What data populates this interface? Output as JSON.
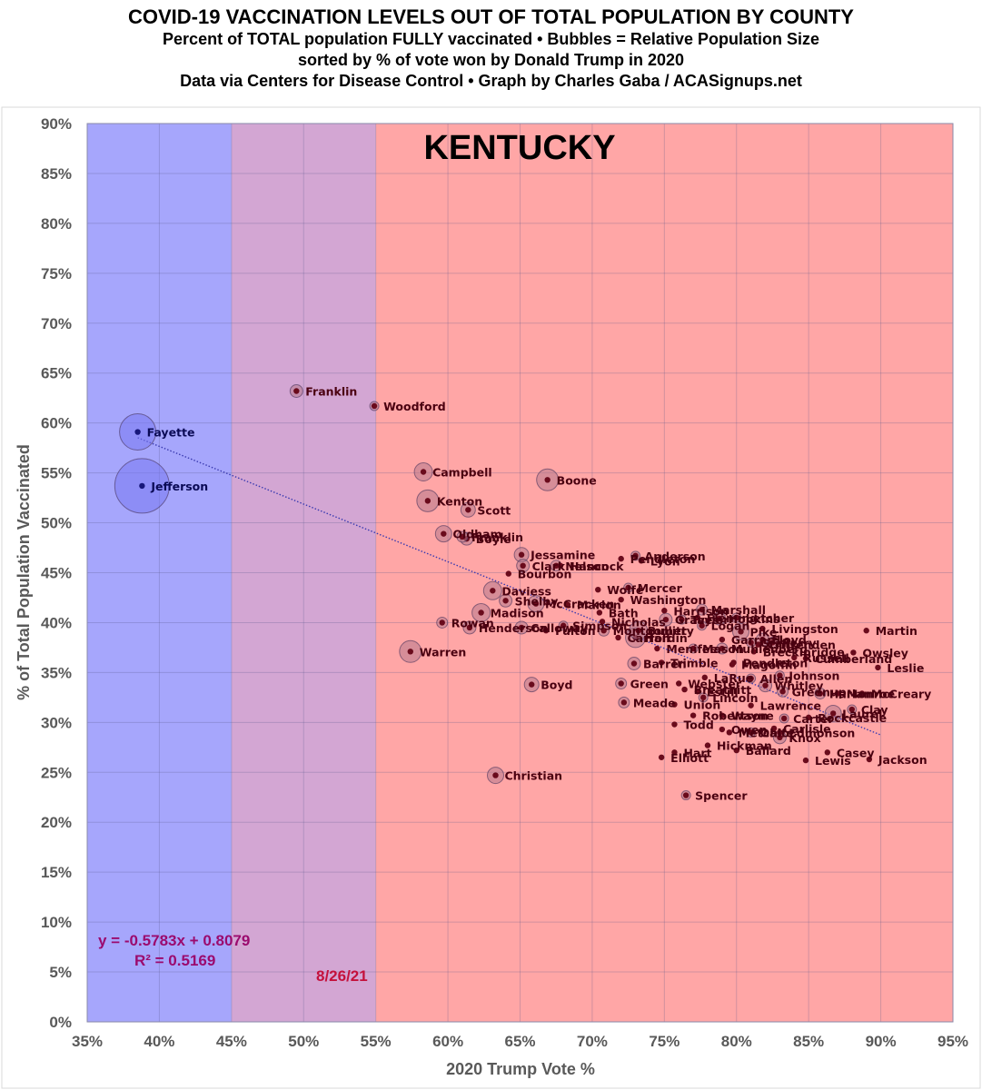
{
  "header": {
    "title": "COVID-19 VACCINATION LEVELS OUT OF TOTAL POPULATION BY COUNTY",
    "subtitle1": "Percent of TOTAL population FULLY vaccinated • Bubbles = Relative Population Size",
    "subtitle2": "sorted by % of vote won by Donald Trump in 2020",
    "subtitle3": "Data via Centers for Disease Control • Graph by Charles Gaba / ACASignups.net"
  },
  "chart_data": {
    "type": "scatter",
    "title": "KENTUCKY",
    "xlabel": "2020 Trump Vote %",
    "ylabel": "% of Total Population Vaccinated",
    "xlim": [
      0.35,
      0.95
    ],
    "ylim": [
      0.0,
      0.9
    ],
    "x_ticks": [
      "35%",
      "40%",
      "45%",
      "50%",
      "55%",
      "60%",
      "65%",
      "70%",
      "75%",
      "80%",
      "85%",
      "90%",
      "95%"
    ],
    "y_ticks": [
      "0%",
      "5%",
      "10%",
      "15%",
      "20%",
      "25%",
      "30%",
      "35%",
      "40%",
      "45%",
      "50%",
      "55%",
      "60%",
      "65%",
      "70%",
      "75%",
      "80%",
      "85%",
      "90%"
    ],
    "grid": true,
    "bands": [
      {
        "from": 0.35,
        "to": 0.45,
        "color": "#a6a6fc"
      },
      {
        "from": 0.45,
        "to": 0.55,
        "color": "#d3a6d3"
      },
      {
        "from": 0.55,
        "to": 0.95,
        "color": "#ffa6a6"
      }
    ],
    "trendline": {
      "slope": -0.5783,
      "intercept": 0.8079,
      "x_from": 0.385,
      "x_to": 0.9
    },
    "equation": "y = -0.5783x + 0.8079",
    "r_squared": "R² = 0.5169",
    "date": "8/26/21",
    "colors": {
      "blue_marker": "#17177a",
      "red_marker": "#6a0b1c",
      "blue_label": "#0a0a55",
      "red_label": "#4a0010",
      "equation": "#9b0a6e",
      "date": "#c4113c"
    },
    "points": [
      {
        "name": "Jefferson",
        "x": 0.388,
        "y": 0.537,
        "size": 30
      },
      {
        "name": "Fayette",
        "x": 0.385,
        "y": 0.591,
        "size": 20
      },
      {
        "name": "Franklin",
        "x": 0.495,
        "y": 0.632,
        "size": 7
      },
      {
        "name": "Woodford",
        "x": 0.549,
        "y": 0.617,
        "size": 5
      },
      {
        "name": "Campbell",
        "x": 0.583,
        "y": 0.551,
        "size": 10
      },
      {
        "name": "Kenton",
        "x": 0.586,
        "y": 0.522,
        "size": 12
      },
      {
        "name": "Boone",
        "x": 0.669,
        "y": 0.543,
        "size": 12
      },
      {
        "name": "Scott",
        "x": 0.614,
        "y": 0.513,
        "size": 8
      },
      {
        "name": "Oldham",
        "x": 0.597,
        "y": 0.489,
        "size": 9
      },
      {
        "name": "Boyle",
        "x": 0.613,
        "y": 0.484,
        "size": 7
      },
      {
        "name": "Franklin",
        "x": 0.61,
        "y": 0.486,
        "size": 6
      },
      {
        "name": "Jessamine",
        "x": 0.651,
        "y": 0.468,
        "size": 8
      },
      {
        "name": "Clark",
        "x": 0.652,
        "y": 0.457,
        "size": 7
      },
      {
        "name": "Hancock",
        "x": 0.678,
        "y": 0.457,
        "size": 4
      },
      {
        "name": "Nelson",
        "x": 0.675,
        "y": 0.457,
        "size": 6
      },
      {
        "name": "Bourbon",
        "x": 0.642,
        "y": 0.449,
        "size": 4
      },
      {
        "name": "Anderson",
        "x": 0.73,
        "y": 0.467,
        "size": 5
      },
      {
        "name": "Pendleton",
        "x": 0.72,
        "y": 0.464,
        "size": 4
      },
      {
        "name": "Lyon",
        "x": 0.734,
        "y": 0.462,
        "size": 3
      },
      {
        "name": "Daviess",
        "x": 0.631,
        "y": 0.432,
        "size": 10
      },
      {
        "name": "Shelby",
        "x": 0.64,
        "y": 0.422,
        "size": 7
      },
      {
        "name": "McCracken",
        "x": 0.661,
        "y": 0.419,
        "size": 9
      },
      {
        "name": "Marion",
        "x": 0.683,
        "y": 0.418,
        "size": 4
      },
      {
        "name": "Mercer",
        "x": 0.725,
        "y": 0.435,
        "size": 5
      },
      {
        "name": "Wolfe",
        "x": 0.704,
        "y": 0.433,
        "size": 3
      },
      {
        "name": "Washington",
        "x": 0.72,
        "y": 0.423,
        "size": 4
      },
      {
        "name": "Madison",
        "x": 0.623,
        "y": 0.41,
        "size": 10
      },
      {
        "name": "Bath",
        "x": 0.705,
        "y": 0.41,
        "size": 3
      },
      {
        "name": "Rowan",
        "x": 0.596,
        "y": 0.4,
        "size": 6
      },
      {
        "name": "Henderson",
        "x": 0.615,
        "y": 0.395,
        "size": 7
      },
      {
        "name": "Calloway",
        "x": 0.651,
        "y": 0.395,
        "size": 7
      },
      {
        "name": "Simpson",
        "x": 0.68,
        "y": 0.397,
        "size": 5
      },
      {
        "name": "Fulton",
        "x": 0.668,
        "y": 0.392,
        "size": 4
      },
      {
        "name": "Nicholas",
        "x": 0.707,
        "y": 0.401,
        "size": 3
      },
      {
        "name": "Warren",
        "x": 0.574,
        "y": 0.371,
        "size": 12
      },
      {
        "name": "Hardin",
        "x": 0.73,
        "y": 0.385,
        "size": 11
      },
      {
        "name": "Montgomery",
        "x": 0.708,
        "y": 0.392,
        "size": 6
      },
      {
        "name": "Carroll",
        "x": 0.718,
        "y": 0.385,
        "size": 4
      },
      {
        "name": "Bullitt",
        "x": 0.732,
        "y": 0.392,
        "size": 10
      },
      {
        "name": "Barren",
        "x": 0.729,
        "y": 0.359,
        "size": 7
      },
      {
        "name": "Boyd",
        "x": 0.658,
        "y": 0.338,
        "size": 8
      },
      {
        "name": "Christian",
        "x": 0.633,
        "y": 0.247,
        "size": 9
      },
      {
        "name": "Green",
        "x": 0.72,
        "y": 0.339,
        "size": 6
      },
      {
        "name": "Meade",
        "x": 0.722,
        "y": 0.32,
        "size": 6
      },
      {
        "name": "Trimble",
        "x": 0.748,
        "y": 0.36,
        "size": 3
      },
      {
        "name": "Menifee",
        "x": 0.745,
        "y": 0.374,
        "size": 3
      },
      {
        "name": "Taylor",
        "x": 0.762,
        "y": 0.403,
        "size": 5
      },
      {
        "name": "Graves",
        "x": 0.751,
        "y": 0.403,
        "size": 7
      },
      {
        "name": "Marshall",
        "x": 0.776,
        "y": 0.413,
        "size": 6
      },
      {
        "name": "Harrison",
        "x": 0.75,
        "y": 0.412,
        "size": 4
      },
      {
        "name": "Fleming",
        "x": 0.773,
        "y": 0.405,
        "size": 4
      },
      {
        "name": "Letcher",
        "x": 0.8,
        "y": 0.405,
        "size": 5
      },
      {
        "name": "Hopkins",
        "x": 0.788,
        "y": 0.404,
        "size": 7
      },
      {
        "name": "Logan",
        "x": 0.776,
        "y": 0.397,
        "size": 5
      },
      {
        "name": "Livingston",
        "x": 0.818,
        "y": 0.394,
        "size": 3
      },
      {
        "name": "Garrard",
        "x": 0.79,
        "y": 0.383,
        "size": 4
      },
      {
        "name": "Grant",
        "x": 0.81,
        "y": 0.38,
        "size": 5
      },
      {
        "name": "Crittenden",
        "x": 0.815,
        "y": 0.378,
        "size": 3
      },
      {
        "name": "Mason",
        "x": 0.77,
        "y": 0.374,
        "size": 5
      },
      {
        "name": "Muhlenberg",
        "x": 0.79,
        "y": 0.374,
        "size": 6
      },
      {
        "name": "Breckinridge",
        "x": 0.812,
        "y": 0.371,
        "size": 4
      },
      {
        "name": "Pike",
        "x": 0.803,
        "y": 0.391,
        "size": 9
      },
      {
        "name": "Floyd",
        "x": 0.818,
        "y": 0.383,
        "size": 7
      },
      {
        "name": "Perry",
        "x": 0.825,
        "y": 0.38,
        "size": 6
      },
      {
        "name": "Russell",
        "x": 0.84,
        "y": 0.365,
        "size": 4
      },
      {
        "name": "Cumberland",
        "x": 0.848,
        "y": 0.364,
        "size": 3
      },
      {
        "name": "Pendleton",
        "x": 0.798,
        "y": 0.36,
        "size": 4
      },
      {
        "name": "Owsley",
        "x": 0.881,
        "y": 0.37,
        "size": 3
      },
      {
        "name": "Martin",
        "x": 0.89,
        "y": 0.392,
        "size": 3
      },
      {
        "name": "Leslie",
        "x": 0.898,
        "y": 0.355,
        "size": 3
      },
      {
        "name": "Magoffin",
        "x": 0.797,
        "y": 0.358,
        "size": 3
      },
      {
        "name": "LaRue",
        "x": 0.778,
        "y": 0.345,
        "size": 4
      },
      {
        "name": "Allen",
        "x": 0.81,
        "y": 0.344,
        "size": 5
      },
      {
        "name": "Johnson",
        "x": 0.83,
        "y": 0.347,
        "size": 5
      },
      {
        "name": "Whitley",
        "x": 0.82,
        "y": 0.337,
        "size": 7
      },
      {
        "name": "Webster",
        "x": 0.76,
        "y": 0.339,
        "size": 4
      },
      {
        "name": "Breathitt",
        "x": 0.764,
        "y": 0.333,
        "size": 3
      },
      {
        "name": "Estill",
        "x": 0.773,
        "y": 0.331,
        "size": 3
      },
      {
        "name": "Lincoln",
        "x": 0.777,
        "y": 0.325,
        "size": 5
      },
      {
        "name": "Greenup",
        "x": 0.832,
        "y": 0.331,
        "size": 6
      },
      {
        "name": "Harlan",
        "x": 0.858,
        "y": 0.329,
        "size": 6
      },
      {
        "name": "Monroe",
        "x": 0.87,
        "y": 0.329,
        "size": 3
      },
      {
        "name": "McCreary",
        "x": 0.887,
        "y": 0.329,
        "size": 4
      },
      {
        "name": "Union",
        "x": 0.757,
        "y": 0.318,
        "size": 4
      },
      {
        "name": "Lawrence",
        "x": 0.81,
        "y": 0.317,
        "size": 4
      },
      {
        "name": "Clay",
        "x": 0.88,
        "y": 0.313,
        "size": 5
      },
      {
        "name": "Laurel",
        "x": 0.867,
        "y": 0.309,
        "size": 9
      },
      {
        "name": "Robertson",
        "x": 0.77,
        "y": 0.307,
        "size": 3
      },
      {
        "name": "Wayne",
        "x": 0.79,
        "y": 0.307,
        "size": 4
      },
      {
        "name": "Rockcastle",
        "x": 0.85,
        "y": 0.305,
        "size": 4
      },
      {
        "name": "Carter",
        "x": 0.833,
        "y": 0.304,
        "size": 5
      },
      {
        "name": "Todd",
        "x": 0.757,
        "y": 0.298,
        "size": 3
      },
      {
        "name": "Owen",
        "x": 0.79,
        "y": 0.293,
        "size": 4
      },
      {
        "name": "Metcalfe",
        "x": 0.795,
        "y": 0.29,
        "size": 3
      },
      {
        "name": "Carlisle",
        "x": 0.826,
        "y": 0.294,
        "size": 3
      },
      {
        "name": "Ohio",
        "x": 0.81,
        "y": 0.29,
        "size": 5
      },
      {
        "name": "Edmonson",
        "x": 0.83,
        "y": 0.29,
        "size": 4
      },
      {
        "name": "Knox",
        "x": 0.83,
        "y": 0.285,
        "size": 7
      },
      {
        "name": "Hickman",
        "x": 0.78,
        "y": 0.277,
        "size": 3
      },
      {
        "name": "Ballard",
        "x": 0.8,
        "y": 0.272,
        "size": 3
      },
      {
        "name": "Hart",
        "x": 0.757,
        "y": 0.27,
        "size": 4
      },
      {
        "name": "Elliott",
        "x": 0.748,
        "y": 0.265,
        "size": 3
      },
      {
        "name": "Casey",
        "x": 0.863,
        "y": 0.27,
        "size": 4
      },
      {
        "name": "Lewis",
        "x": 0.848,
        "y": 0.262,
        "size": 4
      },
      {
        "name": "Jackson",
        "x": 0.892,
        "y": 0.263,
        "size": 4
      },
      {
        "name": "Spencer",
        "x": 0.765,
        "y": 0.227,
        "size": 5
      }
    ]
  }
}
